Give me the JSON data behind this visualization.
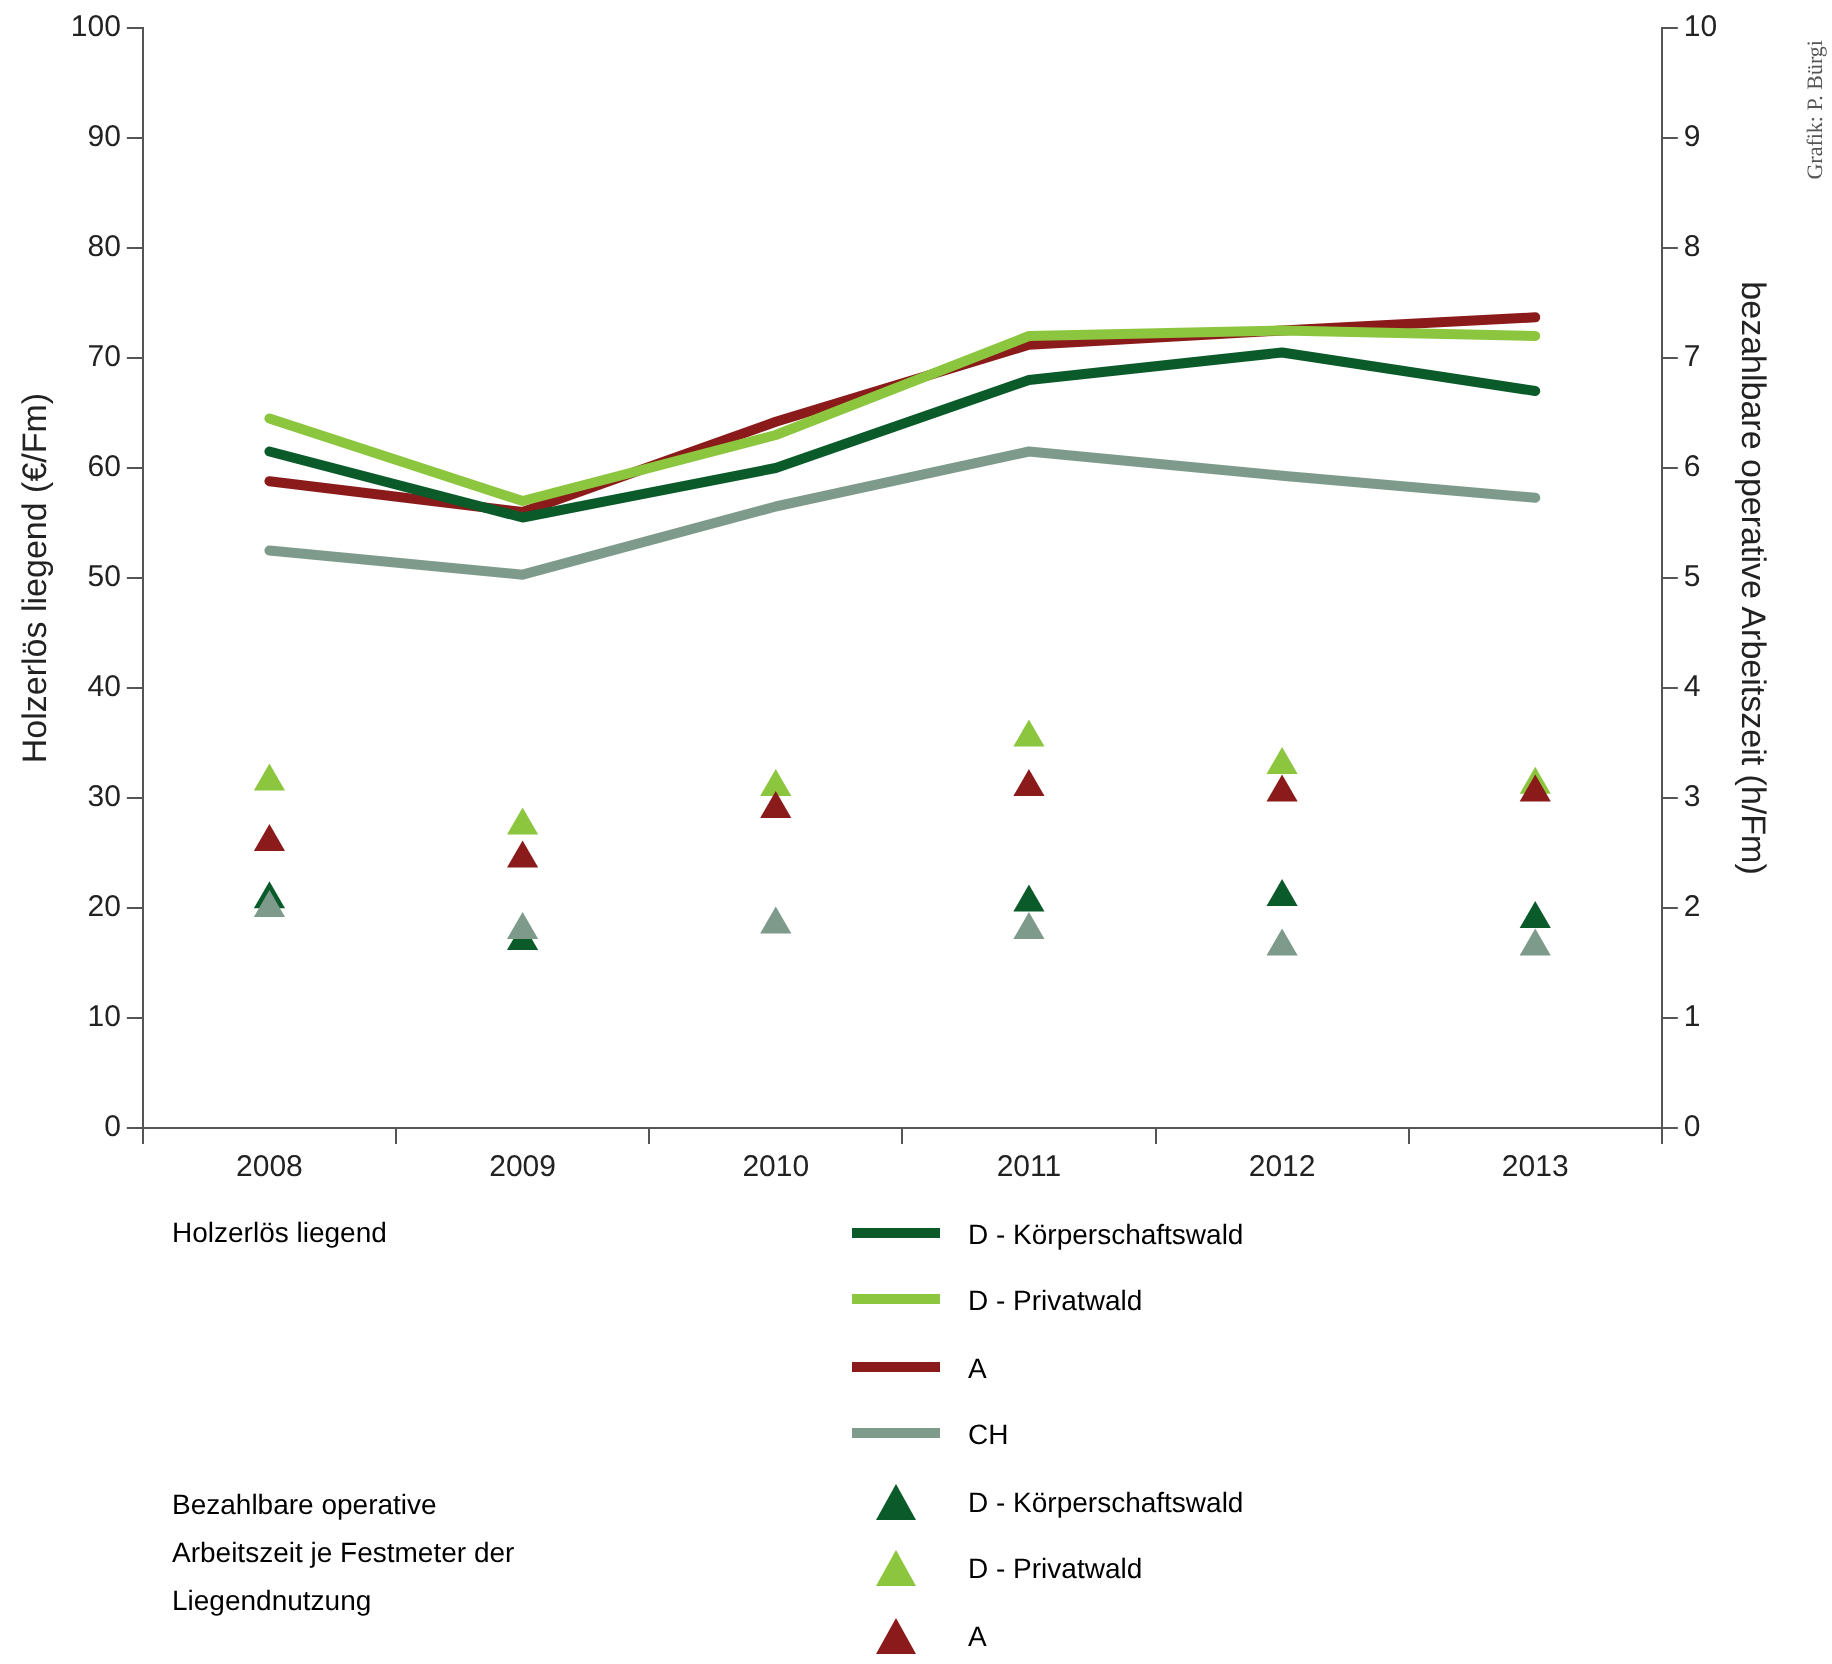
{
  "chart_data": {
    "type": "line",
    "ylabel": "Holzerlös liegend (€/Fm)",
    "y2label": "bezahlbare operative Arbeitszeit (h/Fm)",
    "categories": [
      "2008",
      "2009",
      "2010",
      "2011",
      "2012",
      "2013"
    ],
    "ylim": [
      0,
      100
    ],
    "yticks": [
      0,
      10,
      20,
      30,
      40,
      50,
      60,
      70,
      80,
      90,
      100
    ],
    "y2lim": [
      0,
      10
    ],
    "y2ticks": [
      0,
      1,
      2,
      3,
      4,
      5,
      6,
      7,
      8,
      9,
      10
    ],
    "grid": false,
    "legend": "bottom",
    "series": [
      {
        "name": "D - Körperschaftswald",
        "color": "#0b5a2a",
        "values": [
          61.5,
          55.5,
          60,
          68,
          70.5,
          67
        ]
      },
      {
        "name": "D - Privatwald",
        "color": "#8cc63f",
        "values": [
          64.5,
          57,
          63,
          72,
          72.5,
          72
        ]
      },
      {
        "name": "A",
        "color": "#8b1a1a",
        "values": [
          58.8,
          56,
          64.2,
          71.2,
          72.5,
          73.7
        ]
      },
      {
        "name": "CH",
        "color": "#7d9a8a",
        "values": [
          52.5,
          50.3,
          56.5,
          61.5,
          59.3,
          57.3
        ]
      },
      {
        "name": "D - Körperschaftswald",
        "type": "scatter",
        "axis": "y2",
        "marker": "triangle",
        "color": "#0b5a2a",
        "values": [
          2.08,
          1.7,
          null,
          2.05,
          2.1,
          1.9
        ]
      },
      {
        "name": "D - Privatwald",
        "type": "scatter",
        "axis": "y2",
        "marker": "triangle",
        "color": "#8cc63f",
        "values": [
          3.15,
          2.75,
          3.1,
          3.55,
          3.3,
          3.12
        ]
      },
      {
        "name": "A",
        "type": "scatter",
        "axis": "y2",
        "marker": "triangle",
        "color": "#8b1a1a",
        "values": [
          2.6,
          2.45,
          2.9,
          3.1,
          3.05,
          3.05
        ]
      },
      {
        "type": "scatter",
        "axis": "y2",
        "marker": "triangle",
        "color": "#7d9a8a",
        "values": [
          2.0,
          1.8,
          1.85,
          1.8,
          1.65,
          1.65
        ]
      }
    ],
    "annotations": [
      "Holzerlös liegend",
      "Bezahlbare operative Arbeitszeit je Festmeter der Liegendnutzung",
      "Grafik: P. Bürgi"
    ]
  }
}
